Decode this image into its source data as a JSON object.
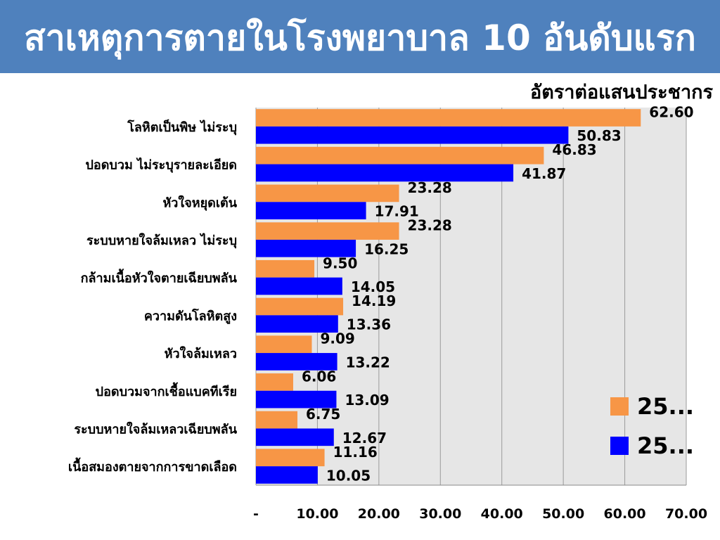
{
  "title": "สาเหตุการตายในโรงพยาบาล 10 อันดับแรก",
  "unit_label": "อัตราต่อแสนประชากร",
  "colors": {
    "title_band": "#4F81BD",
    "series_1": "#F79646",
    "series_2": "#0000FF",
    "plot_bg": "#E6E6E6"
  },
  "chart_data": {
    "type": "bar",
    "orientation": "horizontal",
    "categories": [
      "โลหิตเป็นพิษ ไม่ระบุ",
      "ปอดบวม ไม่ระบุรายละเอียด",
      "หัวใจหยุดเต้น",
      "ระบบหายใจล้มเหลว ไม่ระบุ",
      "กล้ามเนื้อหัวใจตายเฉียบพลัน",
      "ความดันโลหิตสูง",
      "หัวใจล้มเหลว",
      "ปอดบวมจากเชื้อแบคทีเรีย",
      "ระบบหายใจล้มเหลวเฉียบพลัน",
      "เนื้อสมองตายจากการขาดเลือด"
    ],
    "series": [
      {
        "name": "25...",
        "color": "#F79646",
        "values": [
          62.6,
          46.83,
          23.28,
          23.28,
          9.5,
          14.19,
          9.09,
          6.06,
          6.75,
          11.16
        ]
      },
      {
        "name": "25...",
        "color": "#0000FF",
        "values": [
          50.83,
          41.87,
          17.91,
          16.25,
          14.05,
          13.36,
          13.22,
          13.09,
          12.67,
          10.05
        ]
      }
    ],
    "value_labels": [
      [
        "62.60",
        "46.83",
        "23.28",
        "23.28",
        "9.50",
        "14.19",
        "9.09",
        "6.06",
        "6.75",
        "11.16"
      ],
      [
        "50.83",
        "41.87",
        "17.91",
        "16.25",
        "14.05",
        "13.36",
        "13.22",
        "13.09",
        "12.67",
        "10.05"
      ]
    ],
    "xlim": [
      0,
      70
    ],
    "x_ticks": [
      0,
      10,
      20,
      30,
      40,
      50,
      60,
      70
    ],
    "x_tick_labels": [
      "-",
      "10.00",
      "20.00",
      "30.00",
      "40.00",
      "50.00",
      "60.00",
      "70.00"
    ],
    "grid": true,
    "legend_position": "right"
  }
}
